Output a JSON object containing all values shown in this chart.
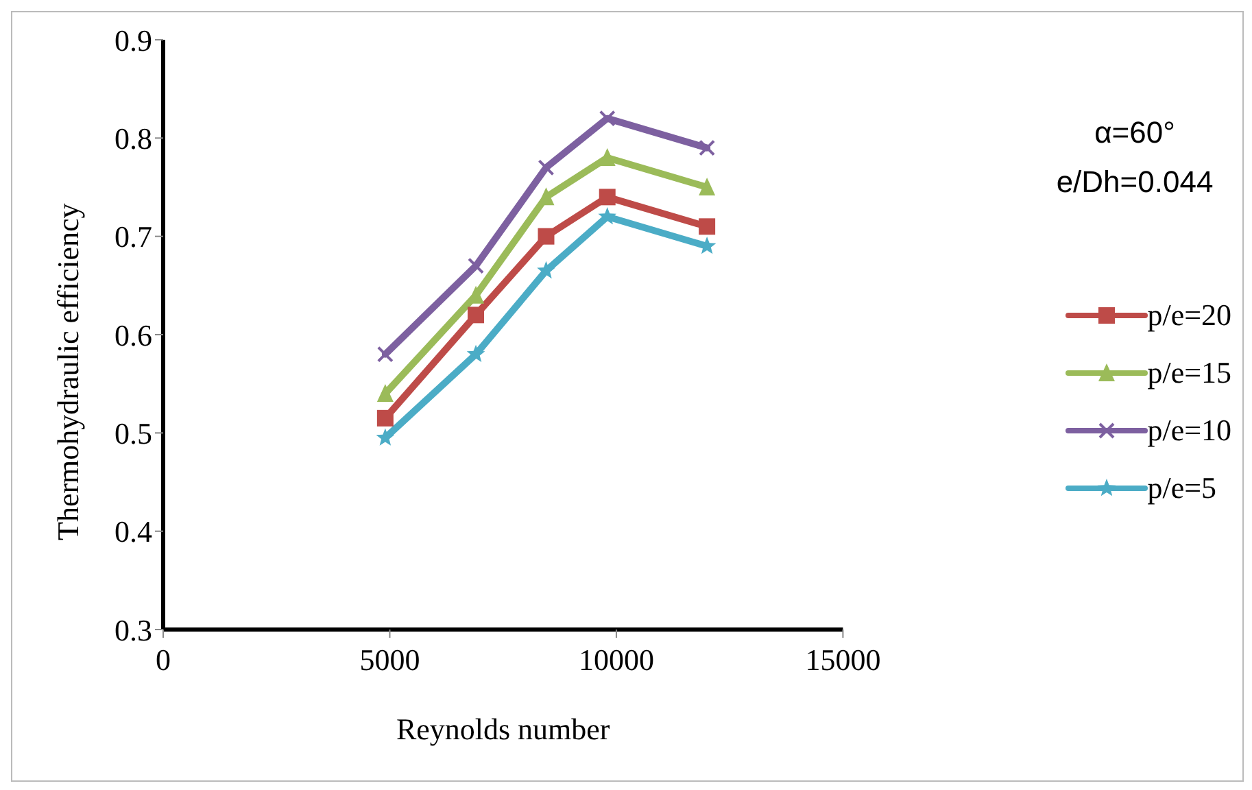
{
  "chart_data": {
    "type": "line",
    "xlabel": "Reynolds number",
    "ylabel": "Thermohydraulic efficiency",
    "annotations": [
      "α=60°",
      "e/Dh=0.044"
    ],
    "x": [
      4900,
      6900,
      8450,
      9800,
      12000
    ],
    "xlim": [
      0,
      15000
    ],
    "xticks": [
      0,
      5000,
      10000,
      15000
    ],
    "ylim": [
      0.3,
      0.9
    ],
    "yticks": [
      0.3,
      0.4,
      0.5,
      0.6,
      0.7,
      0.8,
      0.9
    ],
    "grid": false,
    "legend": "right",
    "line_style": "solid",
    "series": [
      {
        "name": "p/e=20",
        "color": "#be4b48",
        "marker": "square",
        "values": [
          0.515,
          0.62,
          0.7,
          0.74,
          0.71
        ]
      },
      {
        "name": "p/e=15",
        "color": "#9bbb59",
        "marker": "triangle",
        "values": [
          0.54,
          0.64,
          0.74,
          0.78,
          0.75
        ]
      },
      {
        "name": "p/e=10",
        "color": "#7d60a0",
        "marker": "cross",
        "values": [
          0.58,
          0.67,
          0.77,
          0.82,
          0.79
        ]
      },
      {
        "name": "p/e=5",
        "color": "#4bacc6",
        "marker": "star",
        "values": [
          0.495,
          0.58,
          0.665,
          0.72,
          0.69
        ]
      }
    ]
  }
}
